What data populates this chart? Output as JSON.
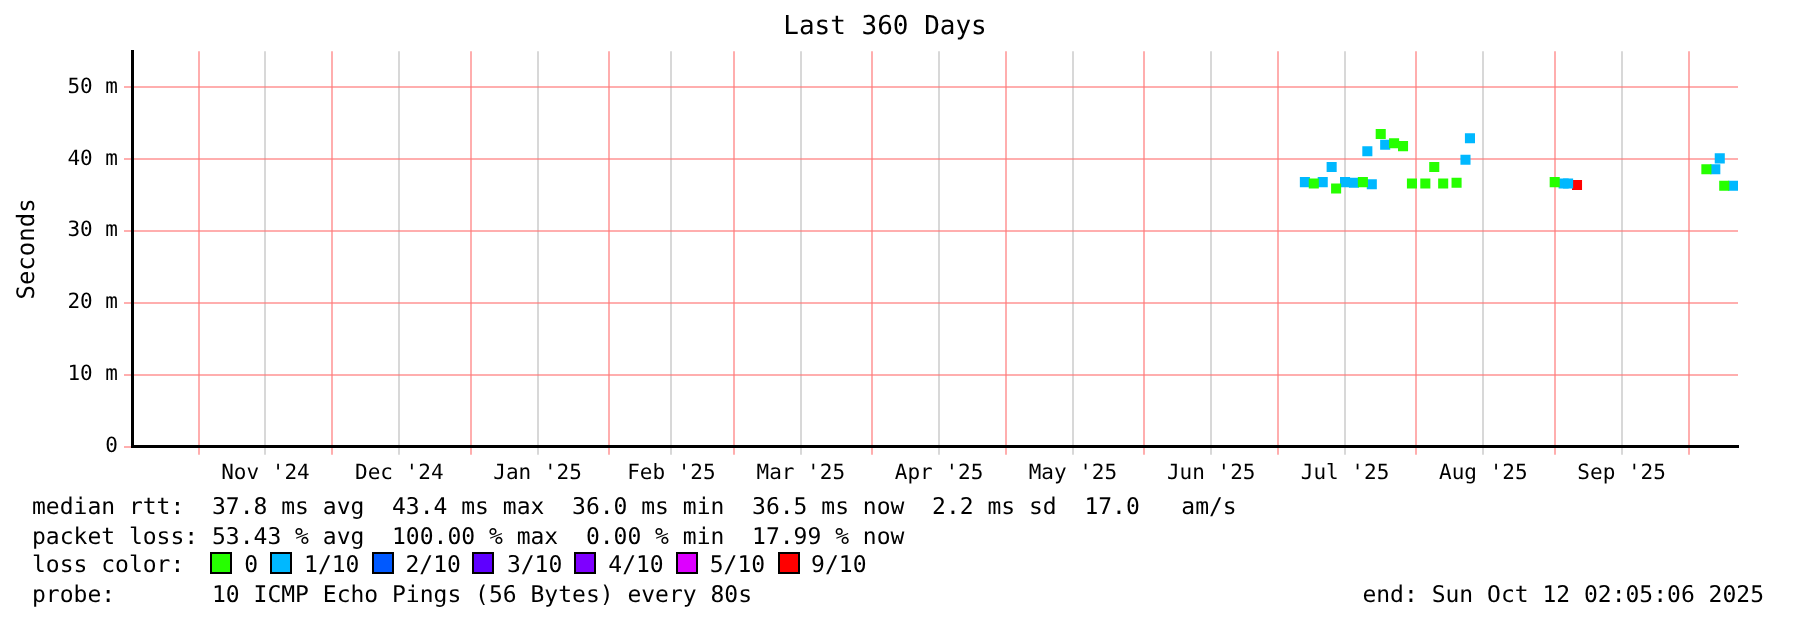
{
  "chart_data": {
    "type": "scatter",
    "title": "Last 360 Days",
    "ylabel": "Seconds",
    "legend_title": "loss color:",
    "legend": "bottom",
    "marker": "square",
    "grid": true,
    "x": [
      "2025-07-07",
      "2025-07-09",
      "2025-07-11",
      "2025-07-13",
      "2025-07-14",
      "2025-07-16",
      "2025-07-18",
      "2025-07-20",
      "2025-07-21",
      "2025-07-22",
      "2025-07-24",
      "2025-07-25",
      "2025-07-27",
      "2025-07-29",
      "2025-07-31",
      "2025-08-03",
      "2025-08-05",
      "2025-08-07",
      "2025-08-10",
      "2025-08-12",
      "2025-08-13",
      "2025-09-01",
      "2025-09-03",
      "2025-09-04",
      "2025-09-06",
      "2025-10-05",
      "2025-10-07",
      "2025-10-08",
      "2025-10-09",
      "2025-10-11"
    ],
    "xlim": [
      "2024-10-17T02:05",
      "2025-10-12T02:05"
    ],
    "xticks": [
      {
        "value": "2024-11-01",
        "label": null
      },
      {
        "value": "2024-11-16",
        "label": "Nov '24"
      },
      {
        "value": "2024-12-01",
        "label": null
      },
      {
        "value": "2024-12-16",
        "label": "Dec '24"
      },
      {
        "value": "2025-01-01",
        "label": null
      },
      {
        "value": "2025-01-16",
        "label": "Jan '25"
      },
      {
        "value": "2025-02-01",
        "label": null
      },
      {
        "value": "2025-02-15",
        "label": "Feb '25"
      },
      {
        "value": "2025-03-01",
        "label": null
      },
      {
        "value": "2025-03-16",
        "label": "Mar '25"
      },
      {
        "value": "2025-04-01",
        "label": null
      },
      {
        "value": "2025-04-16",
        "label": "Apr '25"
      },
      {
        "value": "2025-05-01",
        "label": null
      },
      {
        "value": "2025-05-16",
        "label": "May '25"
      },
      {
        "value": "2025-06-01",
        "label": null
      },
      {
        "value": "2025-06-16",
        "label": "Jun '25"
      },
      {
        "value": "2025-07-01",
        "label": null
      },
      {
        "value": "2025-07-16",
        "label": "Jul '25"
      },
      {
        "value": "2025-08-01",
        "label": null
      },
      {
        "value": "2025-08-16",
        "label": "Aug '25"
      },
      {
        "value": "2025-09-01",
        "label": null
      },
      {
        "value": "2025-09-16",
        "label": "Sep '25"
      },
      {
        "value": "2025-10-01",
        "label": null
      }
    ],
    "ylim": [
      0,
      55
    ],
    "yticks": [
      0,
      {
        "value": 10,
        "label": "10 m"
      },
      {
        "value": 20,
        "label": "20 m"
      },
      {
        "value": 30,
        "label": "30 m"
      },
      {
        "value": 40,
        "label": "40 m"
      },
      {
        "value": 50,
        "label": "50 m"
      }
    ],
    "series": [
      {
        "name": "0",
        "color": "#26ff00",
        "values": [
          null,
          36.6,
          null,
          null,
          35.9,
          null,
          null,
          36.8,
          null,
          null,
          43.5,
          null,
          42.2,
          41.8,
          36.6,
          36.6,
          38.9,
          36.6,
          36.7,
          null,
          null,
          36.8,
          null,
          null,
          null,
          38.6,
          null,
          null,
          36.3,
          null
        ]
      },
      {
        "name": "1/10",
        "color": "#00b8ff",
        "values": [
          36.8,
          null,
          36.8,
          38.9,
          null,
          36.8,
          36.7,
          null,
          41.1,
          36.5,
          null,
          42.0,
          null,
          null,
          null,
          null,
          null,
          null,
          null,
          39.9,
          42.9,
          null,
          36.6,
          36.6,
          null,
          null,
          38.6,
          40.1,
          null,
          36.3
        ]
      },
      {
        "name": "2/10",
        "color": "#0059ff",
        "values": [
          null,
          null,
          null,
          null,
          null,
          null,
          null,
          null,
          null,
          null,
          null,
          null,
          null,
          null,
          null,
          null,
          null,
          null,
          null,
          null,
          null,
          null,
          null,
          null,
          null,
          null,
          null,
          null,
          null,
          null
        ]
      },
      {
        "name": "3/10",
        "color": "#5e00ff",
        "values": [
          null,
          null,
          null,
          null,
          null,
          null,
          null,
          null,
          null,
          null,
          null,
          null,
          null,
          null,
          null,
          null,
          null,
          null,
          null,
          null,
          null,
          null,
          null,
          null,
          null,
          null,
          null,
          null,
          null,
          null
        ]
      },
      {
        "name": "4/10",
        "color": "#7e00ff",
        "values": [
          null,
          null,
          null,
          null,
          null,
          null,
          null,
          null,
          null,
          null,
          null,
          null,
          null,
          null,
          null,
          null,
          null,
          null,
          null,
          null,
          null,
          null,
          null,
          null,
          null,
          null,
          null,
          null,
          null,
          null
        ]
      },
      {
        "name": "5/10",
        "color": "#dd00ff",
        "values": [
          null,
          null,
          null,
          null,
          null,
          null,
          null,
          null,
          null,
          null,
          null,
          null,
          null,
          null,
          null,
          null,
          null,
          null,
          null,
          null,
          null,
          null,
          null,
          null,
          null,
          null,
          null,
          null,
          null,
          null
        ]
      },
      {
        "name": "9/10",
        "color": "#ff0000",
        "values": [
          null,
          null,
          null,
          null,
          null,
          null,
          null,
          null,
          null,
          null,
          null,
          null,
          null,
          null,
          null,
          null,
          null,
          null,
          null,
          null,
          null,
          null,
          null,
          null,
          36.4,
          null,
          null,
          null,
          null,
          null
        ]
      }
    ],
    "annotations": [
      "median rtt:  37.8 ms avg  43.4 ms max  36.0 ms min  36.5 ms now  2.2 ms sd  17.0   am/s",
      "packet loss: 53.43 % avg  100.00 % max  0.00 % min  17.99 % now",
      "probe:       10 ICMP Echo Pings (56 Bytes) every 80s",
      "end: Sun Oct 12 02:05:06 2025"
    ]
  }
}
